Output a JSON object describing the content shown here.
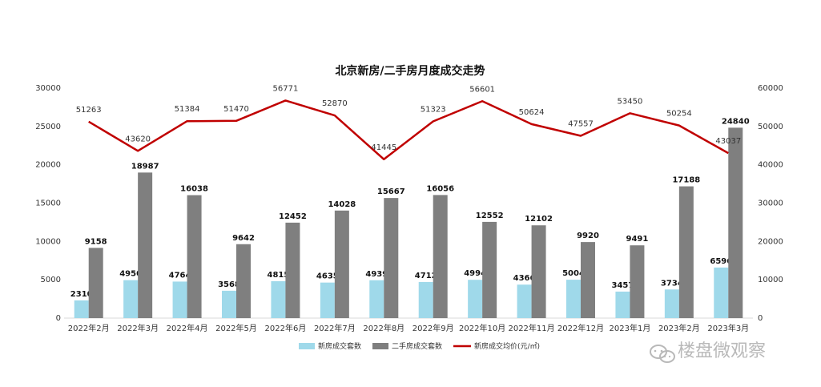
{
  "chart_data": {
    "type": "bar",
    "title": "北京新房/二手房月度成交走势",
    "categories": [
      "2022年2月",
      "2022年3月",
      "2022年4月",
      "2022年5月",
      "2022年6月",
      "2022年7月",
      "2022年8月",
      "2022年9月",
      "2022年10月",
      "2022年11月",
      "2022年12月",
      "2023年1月",
      "2023年2月",
      "2023年3月"
    ],
    "series": [
      {
        "name": "新房成交套数",
        "type": "bar",
        "axis": "left",
        "color": "#9fd9ea",
        "values": [
          2310,
          4950,
          4764,
          3568,
          4815,
          4635,
          4939,
          4712,
          4994,
          4366,
          5004,
          3457,
          3734,
          6596
        ]
      },
      {
        "name": "二手房成交套数",
        "type": "bar",
        "axis": "left",
        "color": "#7f7f7f",
        "values": [
          9158,
          18987,
          16038,
          9642,
          12452,
          14028,
          15667,
          16056,
          12552,
          12102,
          9920,
          9491,
          17188,
          24840
        ]
      },
      {
        "name": "新房成交均价(元/㎡)",
        "type": "line",
        "axis": "right",
        "color": "#c00000",
        "values": [
          51263,
          43620,
          51384,
          51470,
          56771,
          52870,
          41445,
          51323,
          56601,
          50624,
          47557,
          53450,
          50254,
          43037
        ]
      }
    ],
    "y_left": {
      "ylim": [
        0,
        30000
      ],
      "ticks": [
        0,
        5000,
        10000,
        15000,
        20000,
        25000,
        30000
      ]
    },
    "y_right": {
      "ylim": [
        0,
        60000
      ],
      "ticks": [
        0,
        10000,
        20000,
        30000,
        40000,
        50000,
        60000
      ]
    },
    "grid": false,
    "legend": "bottom"
  },
  "watermark": {
    "text": "楼盘微观察",
    "icon": "wechat-logo-icon"
  }
}
